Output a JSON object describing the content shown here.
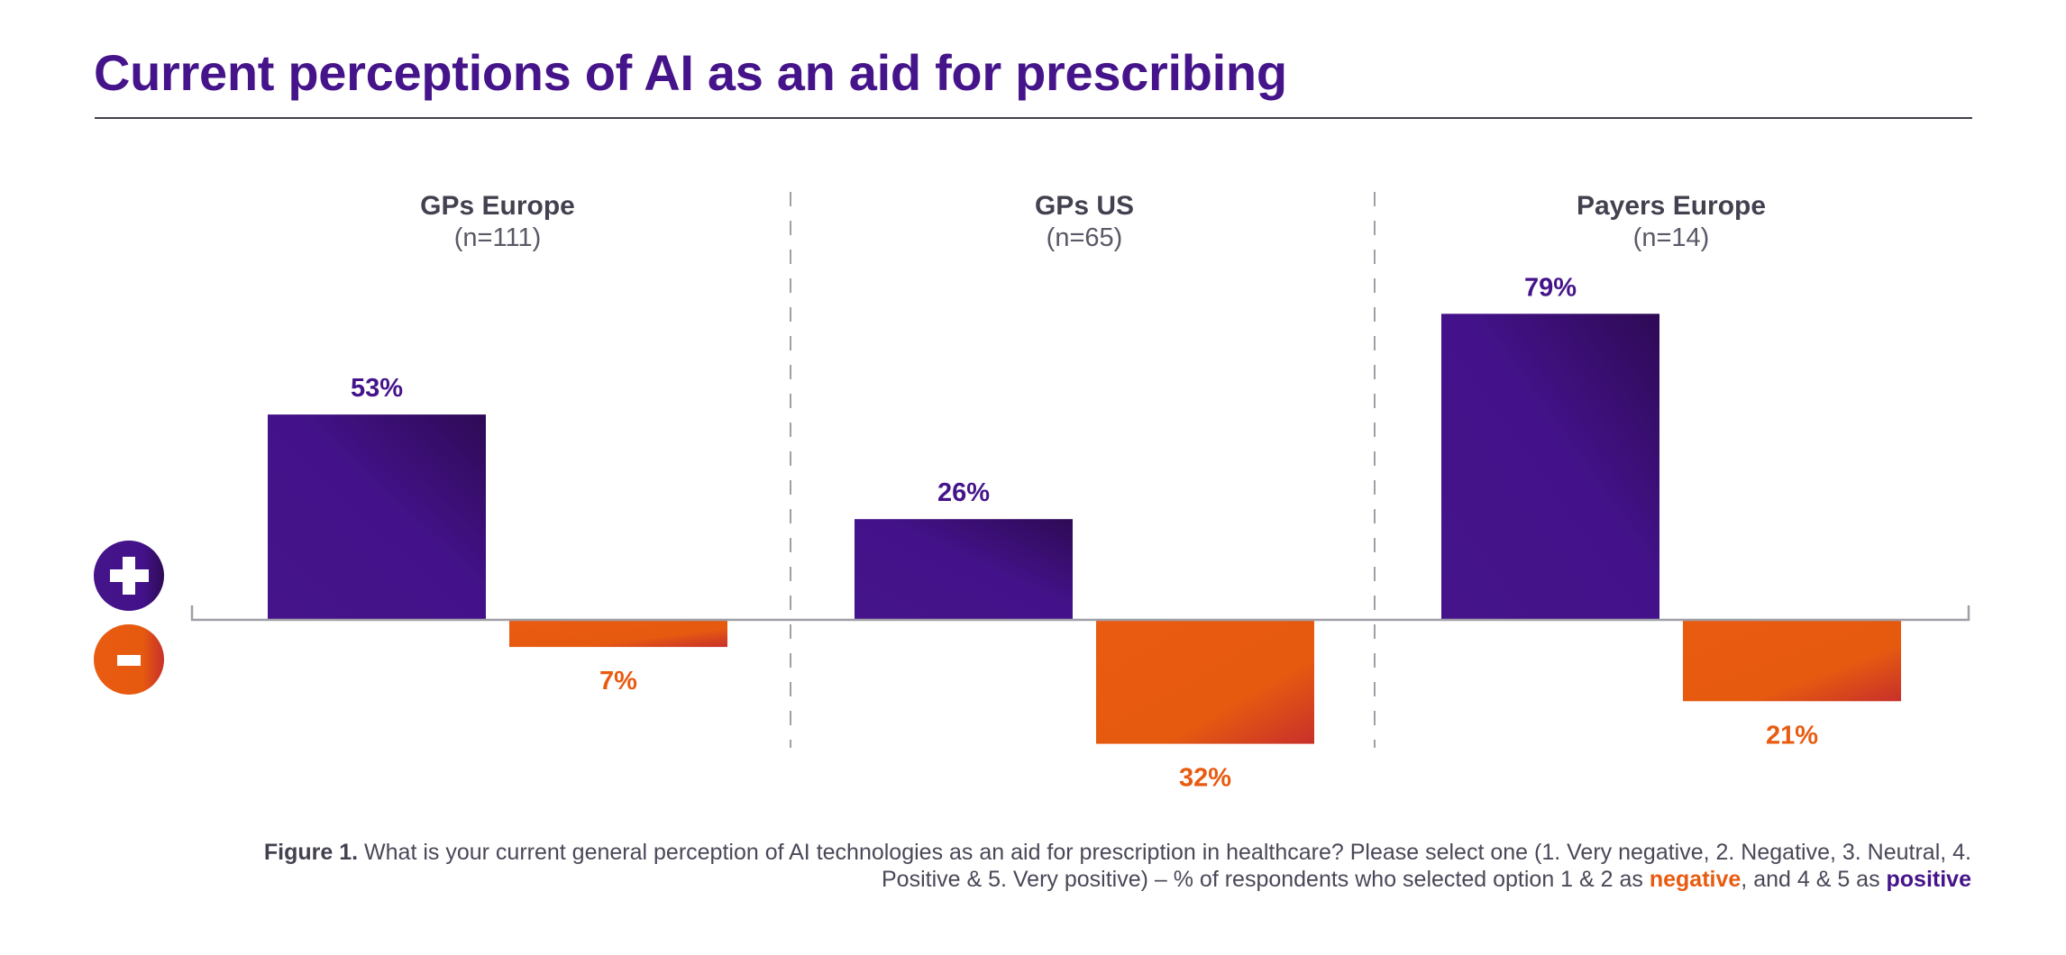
{
  "header": {
    "title": "Current perceptions of AI as an aid for prescribing"
  },
  "legend": {
    "positive_icon": "plus-icon",
    "negative_icon": "minus-icon"
  },
  "colors": {
    "positive": "#45148a",
    "positive_dark": "#2e0a55",
    "negative": "#e85b10",
    "negative_dark": "#c8302a",
    "text": "#43414f"
  },
  "chart_data": {
    "type": "bar",
    "title": "Current perceptions of AI as an aid for prescribing",
    "xlabel": "",
    "ylabel": "% of respondents",
    "categories": [
      "GPs Europe",
      "GPs US",
      "Payers Europe"
    ],
    "sample_sizes": [
      "(n=111)",
      "(n=65)",
      "(n=14)"
    ],
    "series": [
      {
        "name": "positive",
        "values": [
          53,
          26,
          79
        ],
        "labels": [
          "53%",
          "26%",
          "79%"
        ]
      },
      {
        "name": "negative",
        "values": [
          7,
          32,
          21
        ],
        "labels": [
          "7%",
          "32%",
          "21%"
        ]
      }
    ],
    "ylim": [
      -32,
      79
    ],
    "grid": false,
    "legend": "left"
  },
  "caption": {
    "figure_label": "Figure 1.",
    "line1": " What is your current general perception of AI technologies as an aid for prescription in healthcare? Please select one (1. Very negative, 2. Negative, 3. Neutral, 4.",
    "line2_start": "Positive & 5. Very positive) – % of respondents who selected option 1 & 2 as ",
    "negative_word": "negative",
    "line2_mid": ", and 4 & 5 as ",
    "positive_word": "positive"
  }
}
